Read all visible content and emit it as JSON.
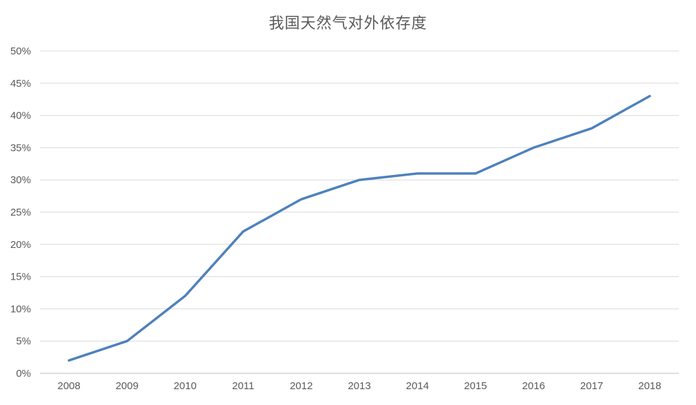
{
  "chart_data": {
    "type": "line",
    "title": "我国天然气对外依存度",
    "categories": [
      "2008",
      "2009",
      "2010",
      "2011",
      "2012",
      "2013",
      "2014",
      "2015",
      "2016",
      "2017",
      "2018"
    ],
    "values": [
      2,
      5,
      12,
      22,
      27,
      30,
      31,
      31,
      35,
      38,
      43
    ],
    "unit": "percent",
    "xlabel": "",
    "ylabel": "",
    "ylim": [
      0,
      50
    ],
    "ytick_step": 5,
    "ytick_labels": [
      "0%",
      "5%",
      "10%",
      "15%",
      "20%",
      "25%",
      "30%",
      "35%",
      "40%",
      "45%",
      "50%"
    ],
    "grid": true,
    "legend_position": "none",
    "markers": false,
    "colors": {
      "line": "#4e81bd",
      "gridline": "#d9d9d9",
      "axis_line": "#bfbfbf",
      "tick_label": "#595959",
      "title": "#595959",
      "background": "#ffffff"
    }
  }
}
